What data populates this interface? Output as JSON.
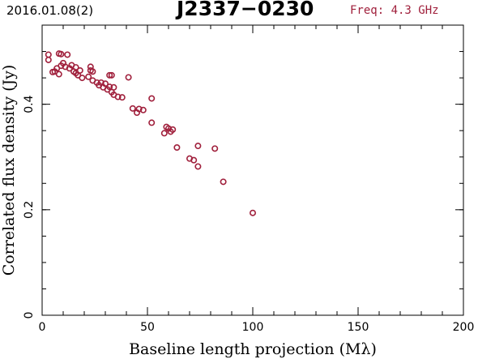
{
  "header": {
    "date": "2016.01.08(2)",
    "source": "J2337−0230",
    "freq": "Freq: 4.3 GHz"
  },
  "colors": {
    "points": "#a0203c",
    "freq_text": "#a0203c",
    "axes": "#000000"
  },
  "chart_data": {
    "type": "scatter",
    "title": "J2337−0230",
    "xlabel": "Baseline length projection (Mλ)",
    "ylabel": "Correlated flux density (Jy)",
    "xlim": [
      0,
      200
    ],
    "ylim": [
      0,
      0.55
    ],
    "xticks": [
      0,
      50,
      100,
      150,
      200
    ],
    "xtick_labels": [
      "0",
      "50",
      "100",
      "150",
      "200"
    ],
    "yticks": [
      0,
      0.2,
      0.4
    ],
    "ytick_labels": [
      "0",
      "0.2",
      "0.4"
    ],
    "x_minor_step": 10,
    "y_minor_step": 0.05,
    "grid": false,
    "marker": "open-circle",
    "points": [
      [
        3,
        0.494
      ],
      [
        3,
        0.484
      ],
      [
        5,
        0.461
      ],
      [
        6,
        0.462
      ],
      [
        7,
        0.468
      ],
      [
        8,
        0.457
      ],
      [
        8,
        0.496
      ],
      [
        9,
        0.495
      ],
      [
        9,
        0.473
      ],
      [
        10,
        0.478
      ],
      [
        11,
        0.471
      ],
      [
        12,
        0.494
      ],
      [
        13,
        0.468
      ],
      [
        14,
        0.474
      ],
      [
        15,
        0.462
      ],
      [
        16,
        0.459
      ],
      [
        16,
        0.47
      ],
      [
        17,
        0.455
      ],
      [
        18,
        0.464
      ],
      [
        19,
        0.45
      ],
      [
        22,
        0.452
      ],
      [
        23,
        0.464
      ],
      [
        23,
        0.471
      ],
      [
        24,
        0.445
      ],
      [
        24,
        0.462
      ],
      [
        26,
        0.441
      ],
      [
        27,
        0.436
      ],
      [
        28,
        0.441
      ],
      [
        29,
        0.432
      ],
      [
        30,
        0.439
      ],
      [
        31,
        0.428
      ],
      [
        32,
        0.455
      ],
      [
        32,
        0.433
      ],
      [
        33,
        0.455
      ],
      [
        33,
        0.423
      ],
      [
        34,
        0.418
      ],
      [
        34,
        0.432
      ],
      [
        36,
        0.414
      ],
      [
        38,
        0.413
      ],
      [
        41,
        0.451
      ],
      [
        43,
        0.392
      ],
      [
        45,
        0.384
      ],
      [
        46,
        0.391
      ],
      [
        48,
        0.389
      ],
      [
        52,
        0.411
      ],
      [
        52,
        0.365
      ],
      [
        58,
        0.345
      ],
      [
        59,
        0.357
      ],
      [
        60,
        0.354
      ],
      [
        61,
        0.348
      ],
      [
        62,
        0.352
      ],
      [
        64,
        0.318
      ],
      [
        70,
        0.297
      ],
      [
        72,
        0.294
      ],
      [
        74,
        0.321
      ],
      [
        74,
        0.282
      ],
      [
        82,
        0.316
      ],
      [
        86,
        0.253
      ],
      [
        100,
        0.194
      ]
    ]
  }
}
